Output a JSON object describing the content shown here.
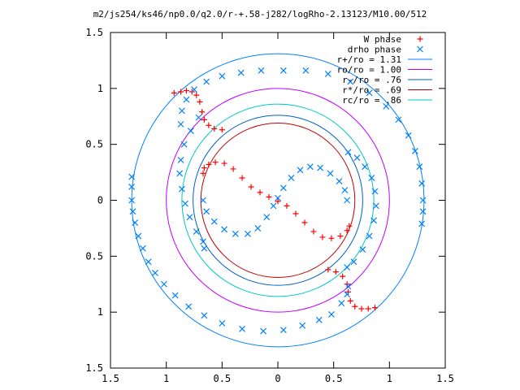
{
  "chart_data": {
    "type": "scatter",
    "title": "m2/js254/ks46/np0.0/q2.0/r-+.58-j282/logRho-2.13123/M10.00/512",
    "xlim": [
      -1.5,
      1.5
    ],
    "ylim": [
      -1.5,
      1.5
    ],
    "x_ticks": [
      -1.5,
      -1,
      -0.5,
      0,
      0.5,
      1,
      1.5
    ],
    "y_ticks": [
      -1.5,
      -1,
      -0.5,
      0,
      0.5,
      1,
      1.5
    ],
    "x_tick_labels": [
      "1.5",
      "1",
      "0.5",
      "0",
      "0.5",
      "1",
      "1.5"
    ],
    "y_tick_labels": [
      "1.5",
      "1",
      "0.5",
      "0",
      "0.5",
      "1",
      "1.5"
    ],
    "grid": false,
    "legend_position": "top-right",
    "legend": [
      {
        "label": "W phase",
        "kind": "points",
        "marker": "+",
        "color": "#ff0000"
      },
      {
        "label": "drho phase",
        "kind": "points",
        "marker": "x",
        "color": "#0080ff"
      },
      {
        "label": "r+/ro = 1.31",
        "kind": "circle",
        "radius": 1.31,
        "color": "#0080ff"
      },
      {
        "label": "ro/ro = 1.00",
        "kind": "circle",
        "radius": 1.0,
        "color": "#c000ff"
      },
      {
        "label": "r-/ro = .76",
        "kind": "circle",
        "radius": 0.76,
        "color": "#0060c0"
      },
      {
        "label": "r*/ro = .69",
        "kind": "circle",
        "radius": 0.69,
        "color": "#c00000"
      },
      {
        "label": "rc/ro = .86",
        "kind": "circle",
        "radius": 0.86,
        "color": "#00c8c8"
      }
    ],
    "series": [
      {
        "name": "W phase",
        "marker": "+",
        "color": "#ff0000",
        "points": [
          [
            -0.93,
            0.96
          ],
          [
            -0.87,
            0.97
          ],
          [
            -0.82,
            0.98
          ],
          [
            -0.77,
            0.97
          ],
          [
            -0.73,
            0.94
          ],
          [
            -0.7,
            0.88
          ],
          [
            -0.68,
            0.79
          ],
          [
            -0.66,
            0.72
          ],
          [
            -0.62,
            0.67
          ],
          [
            -0.57,
            0.64
          ],
          [
            -0.5,
            0.63
          ],
          [
            -0.67,
            0.24
          ],
          [
            -0.66,
            0.29
          ],
          [
            -0.62,
            0.32
          ],
          [
            -0.56,
            0.34
          ],
          [
            -0.48,
            0.33
          ],
          [
            -0.4,
            0.28
          ],
          [
            -0.32,
            0.2
          ],
          [
            -0.24,
            0.12
          ],
          [
            -0.16,
            0.07
          ],
          [
            -0.08,
            0.03
          ],
          [
            0.0,
            -0.01
          ],
          [
            0.08,
            -0.05
          ],
          [
            0.16,
            -0.12
          ],
          [
            0.24,
            -0.2
          ],
          [
            0.32,
            -0.28
          ],
          [
            0.4,
            -0.33
          ],
          [
            0.48,
            -0.34
          ],
          [
            0.56,
            -0.32
          ],
          [
            0.62,
            -0.27
          ],
          [
            0.64,
            -0.23
          ],
          [
            0.45,
            -0.62
          ],
          [
            0.52,
            -0.64
          ],
          [
            0.58,
            -0.68
          ],
          [
            0.62,
            -0.75
          ],
          [
            0.63,
            -0.82
          ],
          [
            0.65,
            -0.9
          ],
          [
            0.69,
            -0.95
          ],
          [
            0.75,
            -0.97
          ],
          [
            0.81,
            -0.97
          ],
          [
            0.87,
            -0.96
          ]
        ]
      },
      {
        "name": "drho phase",
        "marker": "x",
        "color": "#0080ff",
        "points": [
          [
            -1.31,
            0.21
          ],
          [
            -1.31,
            0.12
          ],
          [
            -1.31,
            0.0
          ],
          [
            -1.3,
            -0.1
          ],
          [
            -1.28,
            -0.2
          ],
          [
            -1.25,
            -0.32
          ],
          [
            -1.21,
            -0.43
          ],
          [
            -1.16,
            -0.55
          ],
          [
            -1.1,
            -0.65
          ],
          [
            -1.02,
            -0.75
          ],
          [
            -0.92,
            -0.85
          ],
          [
            -0.8,
            -0.95
          ],
          [
            -0.66,
            -1.03
          ],
          [
            -0.5,
            -1.1
          ],
          [
            -0.32,
            -1.15
          ],
          [
            -0.13,
            -1.17
          ],
          [
            0.05,
            -1.16
          ],
          [
            0.22,
            -1.12
          ],
          [
            0.37,
            -1.07
          ],
          [
            0.48,
            -1.02
          ],
          [
            0.57,
            -0.92
          ],
          [
            0.62,
            -0.84
          ],
          [
            0.63,
            -0.77
          ],
          [
            -0.71,
            0.74
          ],
          [
            -0.78,
            0.62
          ],
          [
            -0.84,
            0.5
          ],
          [
            -0.87,
            0.36
          ],
          [
            -0.88,
            0.24
          ],
          [
            -0.86,
            0.1
          ],
          [
            -0.83,
            -0.03
          ],
          [
            -0.79,
            -0.15
          ],
          [
            -0.73,
            -0.28
          ],
          [
            -0.67,
            -0.37
          ],
          [
            -0.66,
            -0.43
          ],
          [
            -0.67,
            0.0
          ],
          [
            -0.64,
            -0.1
          ],
          [
            -0.57,
            -0.19
          ],
          [
            -0.48,
            -0.26
          ],
          [
            -0.38,
            -0.3
          ],
          [
            -0.27,
            -0.3
          ],
          [
            -0.18,
            -0.25
          ],
          [
            -0.1,
            -0.15
          ],
          [
            -0.04,
            -0.05
          ],
          [
            0.0,
            0.02
          ],
          [
            0.05,
            0.11
          ],
          [
            0.12,
            0.2
          ],
          [
            0.2,
            0.27
          ],
          [
            0.29,
            0.3
          ],
          [
            0.38,
            0.29
          ],
          [
            0.47,
            0.24
          ],
          [
            0.55,
            0.17
          ],
          [
            0.6,
            0.09
          ],
          [
            0.62,
            0.0
          ],
          [
            0.63,
            0.43
          ],
          [
            0.71,
            0.38
          ],
          [
            0.78,
            0.3
          ],
          [
            0.84,
            0.2
          ],
          [
            0.87,
            0.08
          ],
          [
            0.88,
            -0.05
          ],
          [
            0.86,
            -0.18
          ],
          [
            0.82,
            -0.32
          ],
          [
            0.76,
            -0.44
          ],
          [
            0.68,
            -0.55
          ],
          [
            0.62,
            -0.6
          ],
          [
            -0.87,
            0.68
          ],
          [
            -0.86,
            0.8
          ],
          [
            -0.82,
            0.9
          ],
          [
            -0.75,
            0.99
          ],
          [
            -0.64,
            1.06
          ],
          [
            -0.5,
            1.11
          ],
          [
            -0.33,
            1.14
          ],
          [
            -0.15,
            1.16
          ],
          [
            0.05,
            1.16
          ],
          [
            0.25,
            1.16
          ],
          [
            0.45,
            1.13
          ],
          [
            0.65,
            1.06
          ],
          [
            0.82,
            0.96
          ],
          [
            0.97,
            0.84
          ],
          [
            1.08,
            0.72
          ],
          [
            1.17,
            0.58
          ],
          [
            1.23,
            0.44
          ],
          [
            1.27,
            0.3
          ],
          [
            1.29,
            0.15
          ],
          [
            1.3,
            0.0
          ],
          [
            1.3,
            -0.1
          ],
          [
            1.29,
            -0.21
          ]
        ]
      }
    ]
  }
}
